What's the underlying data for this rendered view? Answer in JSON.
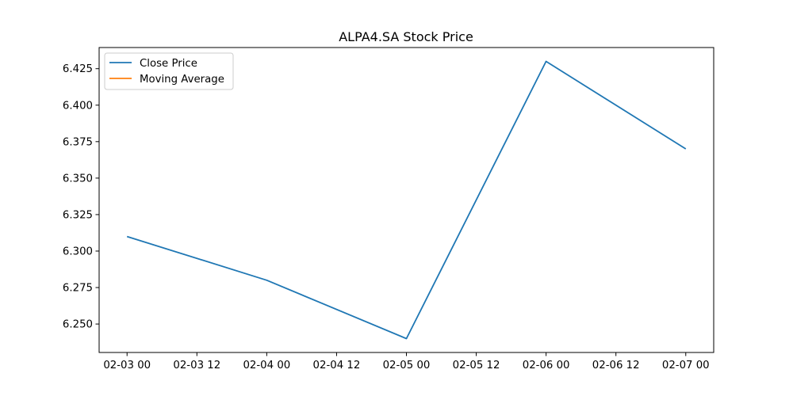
{
  "chart_data": {
    "type": "line",
    "title": "ALPA4.SA Stock Price",
    "xlabel": "",
    "ylabel": "",
    "x": [
      "2024-02-03 00:00",
      "2024-02-04 00:00",
      "2024-02-05 00:00",
      "2024-02-06 00:00",
      "2024-02-07 00:00"
    ],
    "x_tick_labels": [
      "02-03 00",
      "02-03 12",
      "02-04 00",
      "02-04 12",
      "02-05 00",
      "02-05 12",
      "02-06 00",
      "02-06 12",
      "02-07 00"
    ],
    "y_tick_labels": [
      "6.250",
      "6.275",
      "6.300",
      "6.325",
      "6.350",
      "6.375",
      "6.400",
      "6.425"
    ],
    "ylim": [
      6.2305,
      6.4395
    ],
    "series": [
      {
        "name": "Close Price",
        "color": "#1f77b4",
        "values": [
          6.31,
          6.28,
          6.24,
          6.43,
          6.37
        ]
      },
      {
        "name": "Moving Average",
        "color": "#ff7f0e",
        "values": [
          null,
          null,
          null,
          null,
          null
        ]
      }
    ],
    "legend": "upper-left",
    "grid": false
  }
}
